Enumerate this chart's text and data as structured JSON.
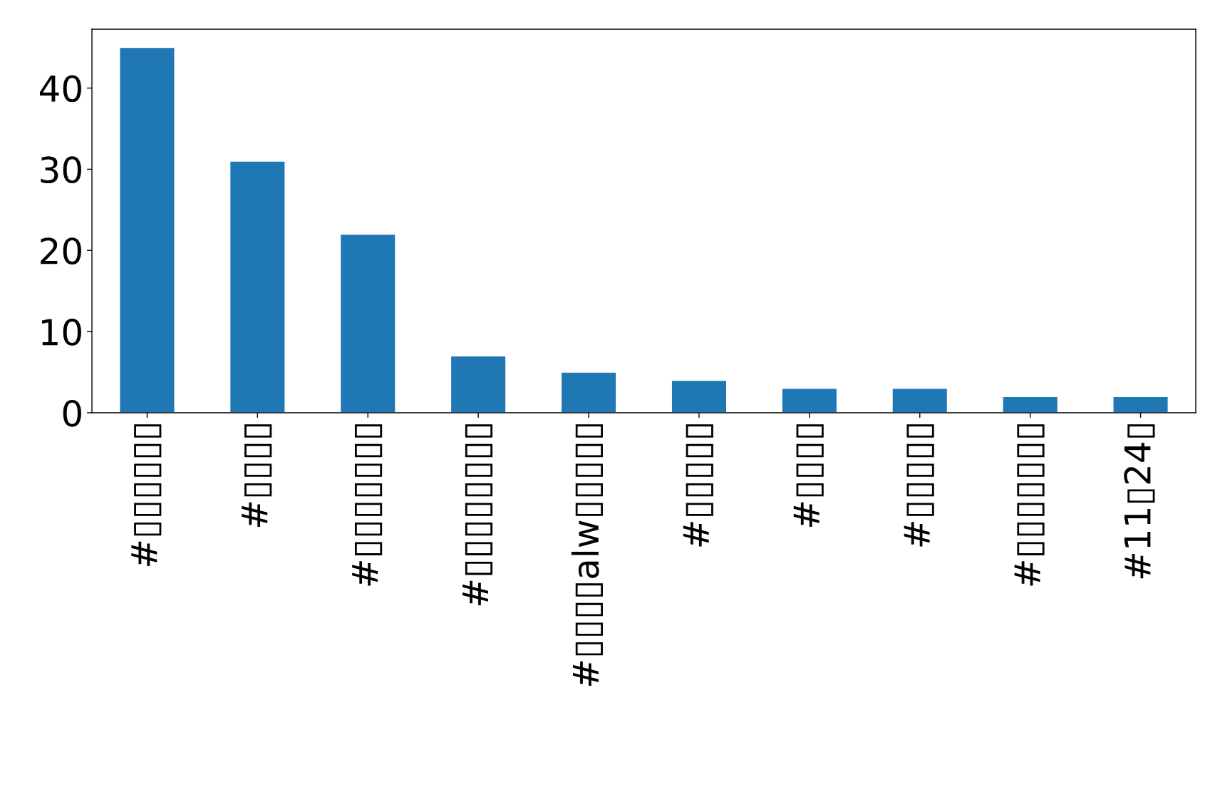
{
  "chart_data": {
    "type": "bar",
    "categories": [
      "#▯▯▯▯▯▯",
      "#▯▯▯▯",
      "#▯▯▯▯▯▯▯",
      "#▯▯▯▯▯▯▯▯",
      "#▯▯▯▯alw▯▯▯▯▯",
      "#▯▯▯▯▯",
      "#▯▯▯▯",
      "#▯▯▯▯▯",
      "#▯▯▯▯▯▯▯",
      "#11▯24▯"
    ],
    "values": [
      45,
      31,
      22,
      7,
      5,
      4,
      3,
      3,
      2,
      2
    ],
    "color": "#1f77b4",
    "ylim": [
      0,
      47.25
    ],
    "yticks": [
      0,
      10,
      20,
      30,
      40
    ],
    "grid": false
  }
}
